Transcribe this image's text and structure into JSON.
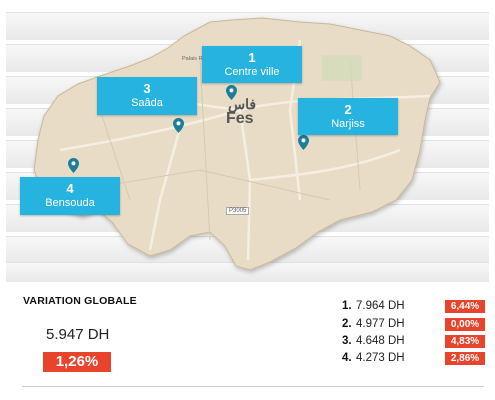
{
  "map": {
    "city_label": "Fes",
    "city_label_ar": "فاس",
    "street_label": "Palais Royal",
    "road_label": "P3005",
    "locations": [
      {
        "num": "1",
        "name": "Centre ville"
      },
      {
        "num": "2",
        "name": "Narjiss"
      },
      {
        "num": "3",
        "name": "Saâda"
      },
      {
        "num": "4",
        "name": "Bensouda"
      }
    ]
  },
  "stats": {
    "title": "VARIATION GLOBALE",
    "global_price": "5.947 DH",
    "global_change": "1,26%",
    "rows": [
      {
        "idx": "1.",
        "price": "7.964 DH",
        "change": "6,44%"
      },
      {
        "idx": "2.",
        "price": "4.977 DH",
        "change": "0,00%"
      },
      {
        "idx": "3.",
        "price": "4.648 DH",
        "change": "4,83%"
      },
      {
        "idx": "4.",
        "price": "4.273 DH",
        "change": "2,86%"
      }
    ]
  },
  "colors": {
    "label_blue": "#27b3e0",
    "badge_red": "#e8432b",
    "map_fill": "#e9dcc6",
    "pin": "#1b7f9a"
  }
}
